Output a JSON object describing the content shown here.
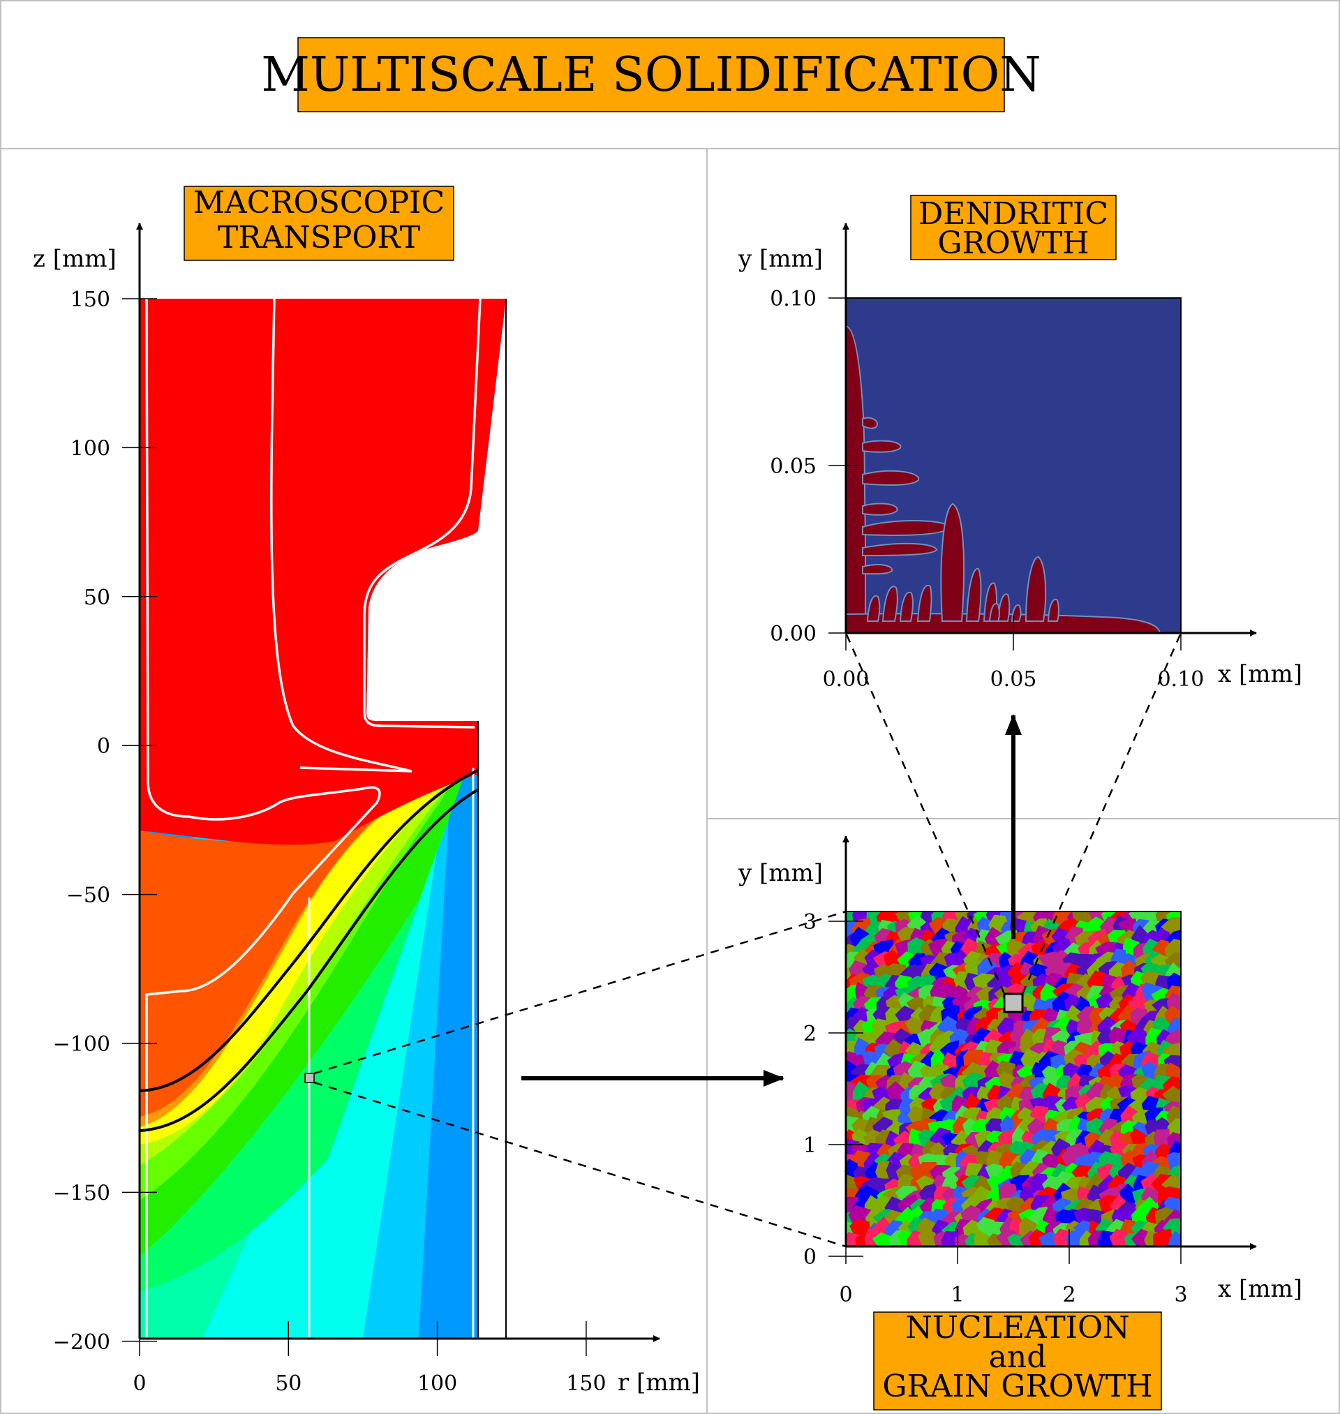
{
  "title": "MULTISCALE SOLIDIFICATION",
  "colors": {
    "title_box": "#ffa500",
    "panel_border": "#c0c0c0",
    "macro_liquid": "#ff0000",
    "dendrite_bg": "#2e3a8c",
    "dendrite_solid": "#800018",
    "zoom_marker": "#c0c0c0"
  },
  "macro": {
    "heading_line1": "MACROSCOPIC",
    "heading_line2": "TRANSPORT",
    "y_axis_label": "z [mm]",
    "x_axis_label": "r [mm]",
    "y_ticks": [
      "150",
      "100",
      "50",
      "0",
      "−50",
      "−100",
      "−150",
      "−200"
    ],
    "x_ticks": [
      "0",
      "50",
      "100",
      "150"
    ],
    "color_bands": [
      "#ff0000",
      "#ff5500",
      "#ff9900",
      "#ffff00",
      "#b4ff00",
      "#66ff00",
      "#22ee00",
      "#00ff66",
      "#00ffaa",
      "#00ffee",
      "#00ccff",
      "#0099ff",
      "#0055ff"
    ]
  },
  "dendritic": {
    "heading_line1": "DENDRITIC",
    "heading_line2": "GROWTH",
    "y_axis_label": "y [mm]",
    "x_axis_label": "x [mm]",
    "y_ticks": [
      "0.10",
      "0.05",
      "0.00"
    ],
    "x_ticks": [
      "0.00",
      "0.05",
      "0.10"
    ]
  },
  "grain": {
    "heading_line1": "NUCLEATION",
    "heading_line2": "and",
    "heading_line3": "GRAIN GROWTH",
    "y_axis_label": "y [mm]",
    "x_axis_label": "x [mm]",
    "y_ticks": [
      "3",
      "2",
      "1",
      "0"
    ],
    "x_ticks": [
      "0",
      "1",
      "2",
      "3"
    ],
    "grain_colors": [
      "#ff0000",
      "#00ff00",
      "#0000ff",
      "#7fb000",
      "#b000a0",
      "#8a7a00",
      "#6a00e0",
      "#e04000",
      "#00c050",
      "#c02090",
      "#3060ff",
      "#909000",
      "#ff2060",
      "#40e040",
      "#5010c0"
    ]
  }
}
